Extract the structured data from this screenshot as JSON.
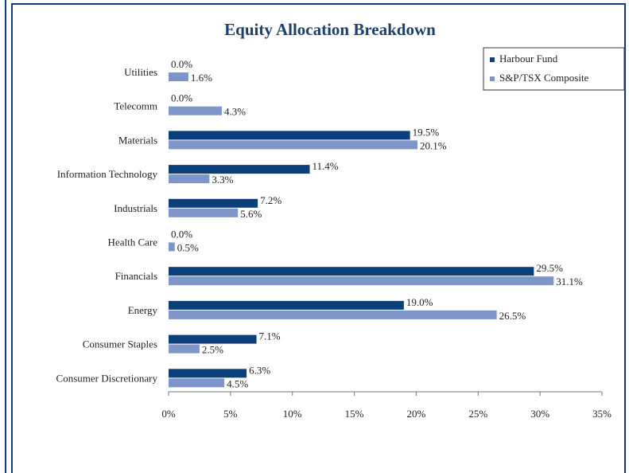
{
  "chart_data": {
    "type": "barh",
    "title": "Equity Allocation Breakdown",
    "categories": [
      "Utilities",
      "Telecomm",
      "Materials",
      "Information Technology",
      "Industrials",
      "Health Care",
      "Financials",
      "Energy",
      "Consumer Staples",
      "Consumer Discretionary"
    ],
    "series": [
      {
        "name": "Harbour Fund",
        "color": "#0b3f7c",
        "values": [
          0,
          0,
          19.5,
          11.4,
          7.2,
          0,
          29.5,
          19,
          7.1,
          6.3
        ],
        "value_labels": [
          "0.0%",
          "0.0%",
          "19.5%",
          "11.4%",
          "7.2%",
          "0.0%",
          "29.5%",
          "19.0%",
          "7.1%",
          "6.3%"
        ]
      },
      {
        "name": "S&P/TSX Composite",
        "color": "#7e95c9",
        "values": [
          1.6,
          4.3,
          20.1,
          3.3,
          5.6,
          0.5,
          31.1,
          26.5,
          2.5,
          4.5
        ],
        "value_labels": [
          "1.6%",
          "4.3%",
          "20.1%",
          "3.3%",
          "5.6%",
          "0.5%",
          "31.1%",
          "26.5%",
          "2.5%",
          "4.5%"
        ]
      }
    ],
    "xlim": [
      0,
      35
    ],
    "xticks": [
      {
        "value": 0,
        "label": "0%"
      },
      {
        "value": 5,
        "label": "5%"
      },
      {
        "value": 10,
        "label": "10%"
      },
      {
        "value": 15,
        "label": "15%"
      },
      {
        "value": 20,
        "label": "20%"
      },
      {
        "value": 25,
        "label": "25%"
      },
      {
        "value": 30,
        "label": "30%"
      },
      {
        "value": 35,
        "label": "35%"
      }
    ],
    "legend": "top-right"
  }
}
